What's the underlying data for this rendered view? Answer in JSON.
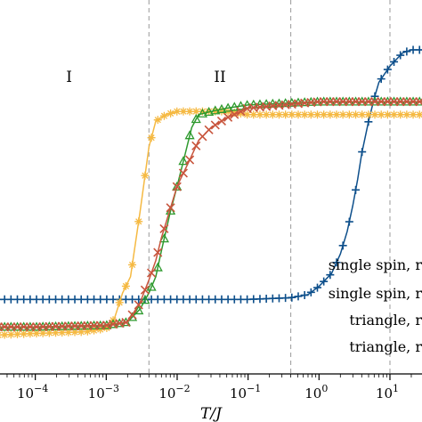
{
  "chart_data": {
    "type": "line",
    "xscale": "log",
    "xlim": [
      3e-05,
      30
    ],
    "ylim": [
      0,
      1
    ],
    "xlabel": "T/J",
    "ylabel": "",
    "title": "",
    "grid": false,
    "x_ticks": [
      {
        "value": 0.0001,
        "label": "10",
        "exp": "−4"
      },
      {
        "value": 0.001,
        "label": "10",
        "exp": "−3"
      },
      {
        "value": 0.01,
        "label": "10",
        "exp": "−2"
      },
      {
        "value": 0.1,
        "label": "10",
        "exp": "−1"
      },
      {
        "value": 1,
        "label": "10",
        "exp": "0"
      },
      {
        "value": 10,
        "label": "10",
        "exp": "1"
      }
    ],
    "vlines": [
      0.004,
      0.4,
      10
    ],
    "regions": [
      {
        "label": "I",
        "x": 0.0003
      },
      {
        "label": "II",
        "x": 0.04
      }
    ],
    "legend_position": "bottom-right",
    "legend": [
      {
        "label": "single spin, r",
        "color": "#0d4f8b",
        "marker": "plus"
      },
      {
        "label": "single spin, r",
        "color": "#f5b942",
        "marker": "star"
      },
      {
        "label": "triangle, r",
        "color": "#2e9a2e",
        "marker": "triangle"
      },
      {
        "label": "triangle, r",
        "color": "#c8553d",
        "marker": "x"
      }
    ],
    "series": [
      {
        "color": "#0d4f8b",
        "marker": "plus",
        "x": [
          3e-05,
          0.0001,
          0.001,
          0.01,
          0.1,
          0.4,
          0.7,
          1.0,
          1.5,
          2.0,
          2.5,
          3.0,
          3.5,
          4.0,
          5.0,
          6.0,
          7.0,
          10,
          15,
          20,
          30
        ],
        "y": [
          0.23,
          0.23,
          0.23,
          0.23,
          0.23,
          0.235,
          0.245,
          0.27,
          0.31,
          0.37,
          0.44,
          0.52,
          0.6,
          0.68,
          0.78,
          0.85,
          0.9,
          0.95,
          0.99,
          1.0,
          1.0
        ]
      },
      {
        "color": "#f5b942",
        "marker": "star",
        "x": [
          3e-05,
          0.0001,
          0.0005,
          0.001,
          0.0013,
          0.0017,
          0.0022,
          0.003,
          0.004,
          0.005,
          0.007,
          0.01,
          0.02,
          0.05,
          0.1,
          1,
          10,
          30
        ],
        "y": [
          0.12,
          0.125,
          0.13,
          0.14,
          0.17,
          0.25,
          0.3,
          0.5,
          0.7,
          0.78,
          0.8,
          0.81,
          0.81,
          0.81,
          0.8,
          0.8,
          0.8,
          0.8
        ]
      },
      {
        "color": "#2e9a2e",
        "marker": "triangle",
        "x": [
          3e-05,
          0.0001,
          0.001,
          0.002,
          0.003,
          0.004,
          0.005,
          0.006,
          0.008,
          0.01,
          0.013,
          0.016,
          0.02,
          0.03,
          0.05,
          0.1,
          1,
          10,
          30
        ],
        "y": [
          0.145,
          0.145,
          0.15,
          0.16,
          0.2,
          0.25,
          0.3,
          0.38,
          0.5,
          0.58,
          0.68,
          0.76,
          0.8,
          0.81,
          0.82,
          0.83,
          0.84,
          0.84,
          0.84
        ]
      },
      {
        "color": "#c8553d",
        "marker": "x",
        "x": [
          3e-05,
          0.0001,
          0.001,
          0.002,
          0.003,
          0.004,
          0.005,
          0.006,
          0.008,
          0.01,
          0.015,
          0.02,
          0.03,
          0.05,
          0.1,
          1,
          10,
          30
        ],
        "y": [
          0.145,
          0.145,
          0.15,
          0.16,
          0.22,
          0.29,
          0.35,
          0.42,
          0.51,
          0.58,
          0.66,
          0.72,
          0.76,
          0.79,
          0.82,
          0.84,
          0.84,
          0.84
        ]
      }
    ]
  }
}
